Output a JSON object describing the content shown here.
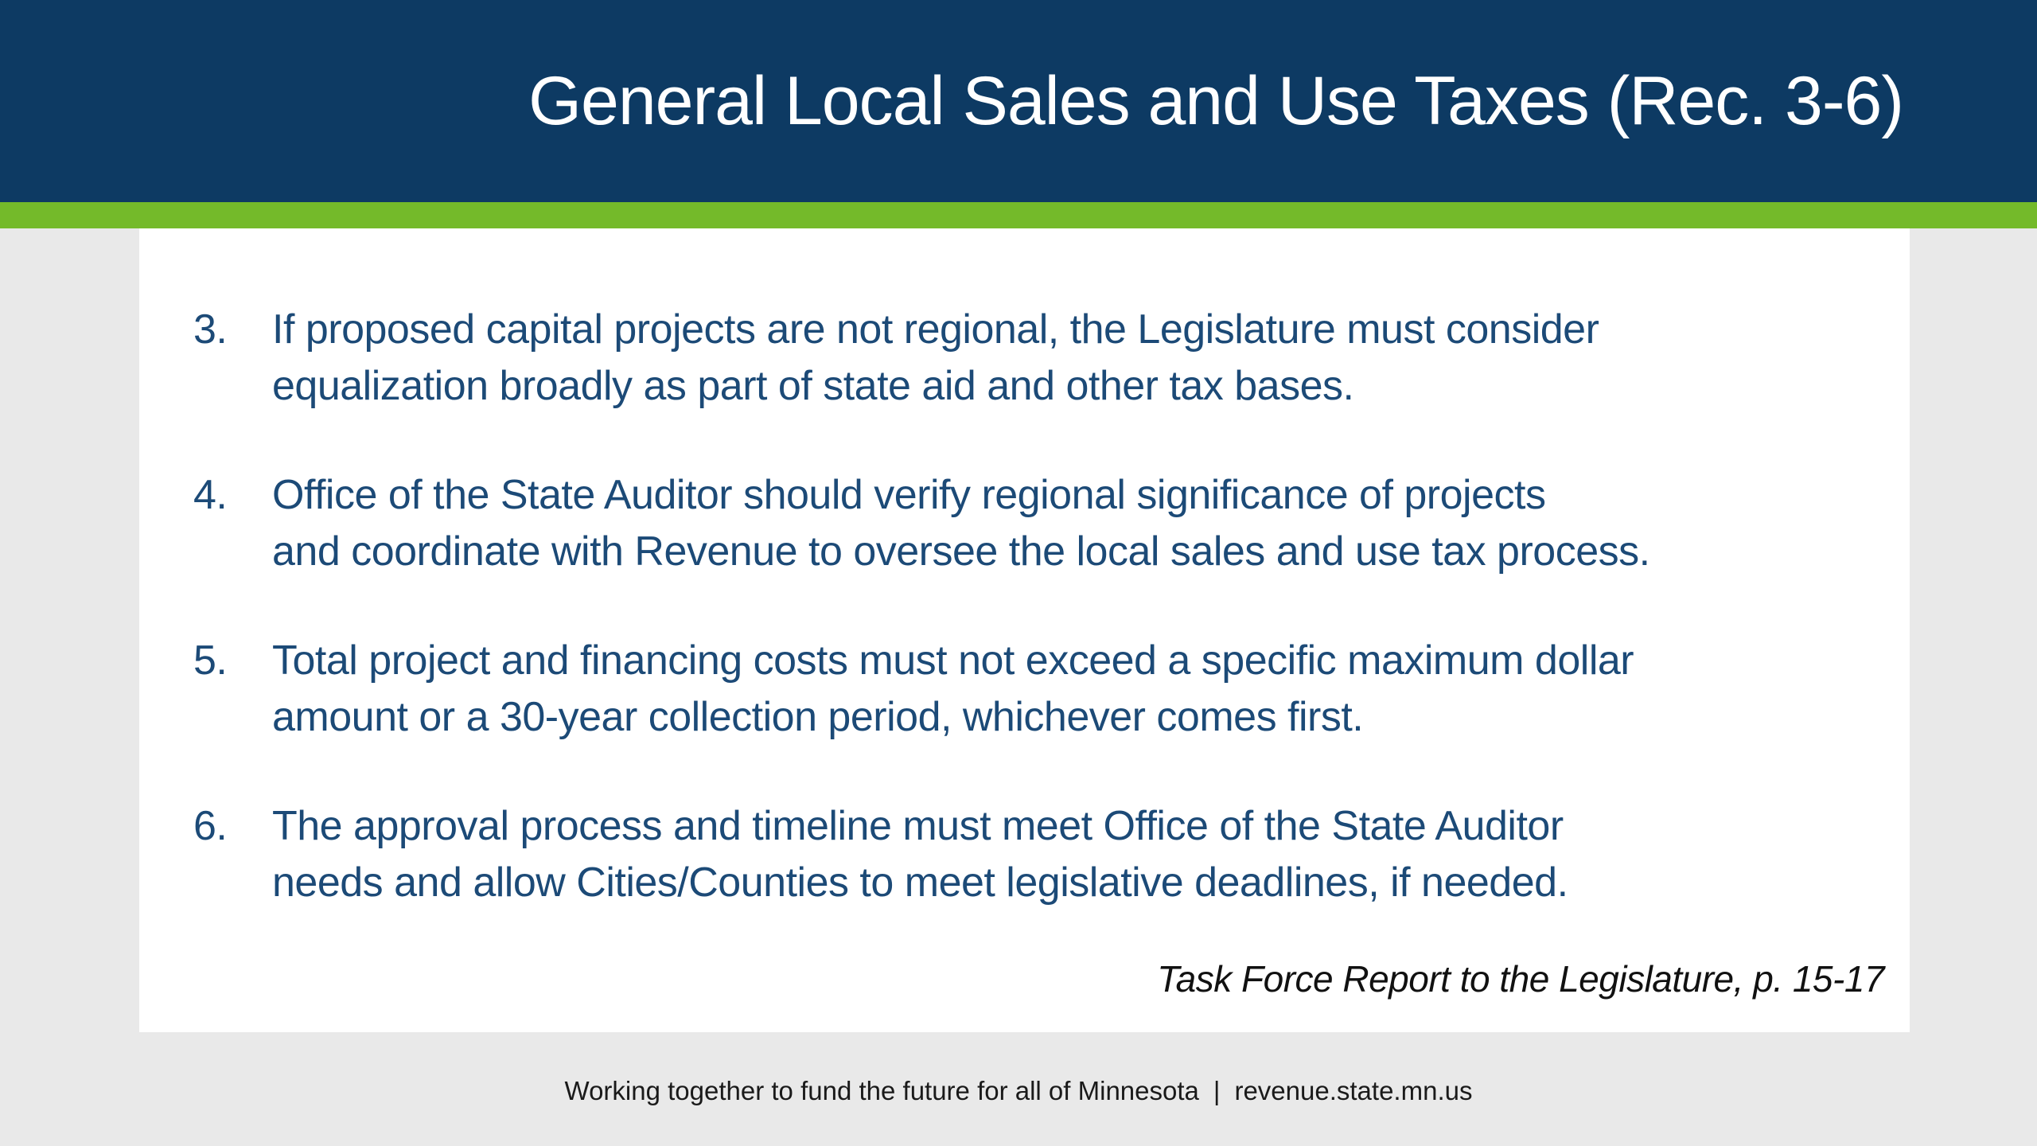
{
  "slide": {
    "title": "General Local Sales and Use Taxes (Rec. 3-6)",
    "list": {
      "items": [
        {
          "number": "3.",
          "line1": "If proposed capital projects are not regional, the Legislature must consider",
          "line2": "equalization broadly as part of state aid and other tax bases."
        },
        {
          "number": "4.",
          "line1": "Office of the State Auditor should verify regional significance of projects",
          "line2": "and coordinate with Revenue to oversee the local sales and use tax process."
        },
        {
          "number": "5.",
          "line1": "Total project and financing costs must not exceed a specific maximum dollar",
          "line2": "amount or a 30-year collection period, whichever comes first."
        },
        {
          "number": "6.",
          "line1": "The approval process and timeline must meet Office of the State Auditor",
          "line2": "needs and allow Cities/Counties to meet legislative deadlines, if needed."
        }
      ]
    },
    "attribution": "Task Force Report to the Legislature, p. 15-17",
    "footer": {
      "tagline": "Working together to fund the future for all of Minnesota",
      "separator": "|",
      "website": "revenue.state.mn.us"
    },
    "colors": {
      "header_navy": "#0d3a63",
      "accent_green": "#74ba2a",
      "body_text_navy": "#1c4a77",
      "background_gray": "#e9e9e9",
      "card_white": "#ffffff",
      "footer_text": "#1a1a1a"
    }
  }
}
